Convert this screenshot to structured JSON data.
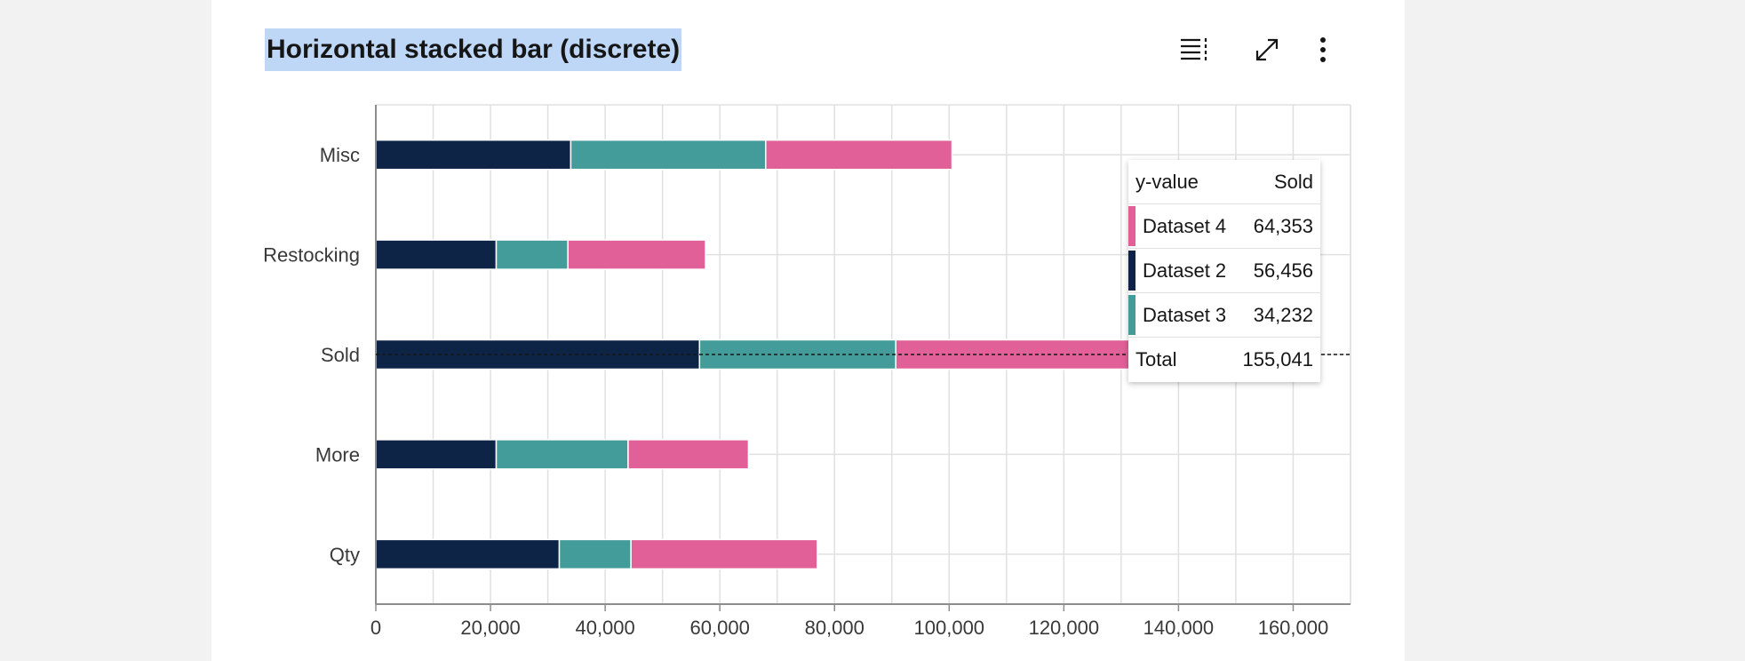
{
  "title": "Horizontal stacked bar (discrete)",
  "toolbar": {
    "icons": [
      "table-view-icon",
      "maximize-icon",
      "overflow-menu-icon"
    ]
  },
  "colors": {
    "Dataset 1": "#0e2447",
    "Dataset 2": "#0e2447",
    "Dataset 3": "#449c9a",
    "Dataset 4": "#e06097",
    "highlight": "#bfd7f7",
    "grid": "#e0e0e0"
  },
  "chart_data": {
    "type": "bar",
    "orientation": "horizontal",
    "stacked": true,
    "categories": [
      "Misc",
      "Restocking",
      "Sold",
      "More",
      "Qty"
    ],
    "series": [
      {
        "name": "Dataset 2",
        "values": [
          34000,
          21000,
          56456,
          21000,
          32000
        ]
      },
      {
        "name": "Dataset 3",
        "values": [
          34000,
          12500,
          34232,
          23000,
          12500
        ]
      },
      {
        "name": "Dataset 4",
        "values": [
          32500,
          24000,
          64353,
          21000,
          32500
        ]
      }
    ],
    "xlim": [
      0,
      170000
    ],
    "x_ticks": [
      "0",
      "20,000",
      "40,000",
      "60,000",
      "80,000",
      "100,000",
      "120,000",
      "140,000",
      "160,000"
    ],
    "x_tick_values": [
      0,
      20000,
      40000,
      60000,
      80000,
      100000,
      120000,
      140000,
      160000
    ],
    "grid": true
  },
  "tooltip": {
    "header_label": "y-value",
    "header_value": "Sold",
    "rows": [
      {
        "label": "Dataset 4",
        "value": "64,353",
        "color": "#e06097"
      },
      {
        "label": "Dataset 2",
        "value": "56,456",
        "color": "#0e2447"
      },
      {
        "label": "Dataset 3",
        "value": "34,232",
        "color": "#449c9a"
      }
    ],
    "total_label": "Total",
    "total_value": "155,041"
  }
}
